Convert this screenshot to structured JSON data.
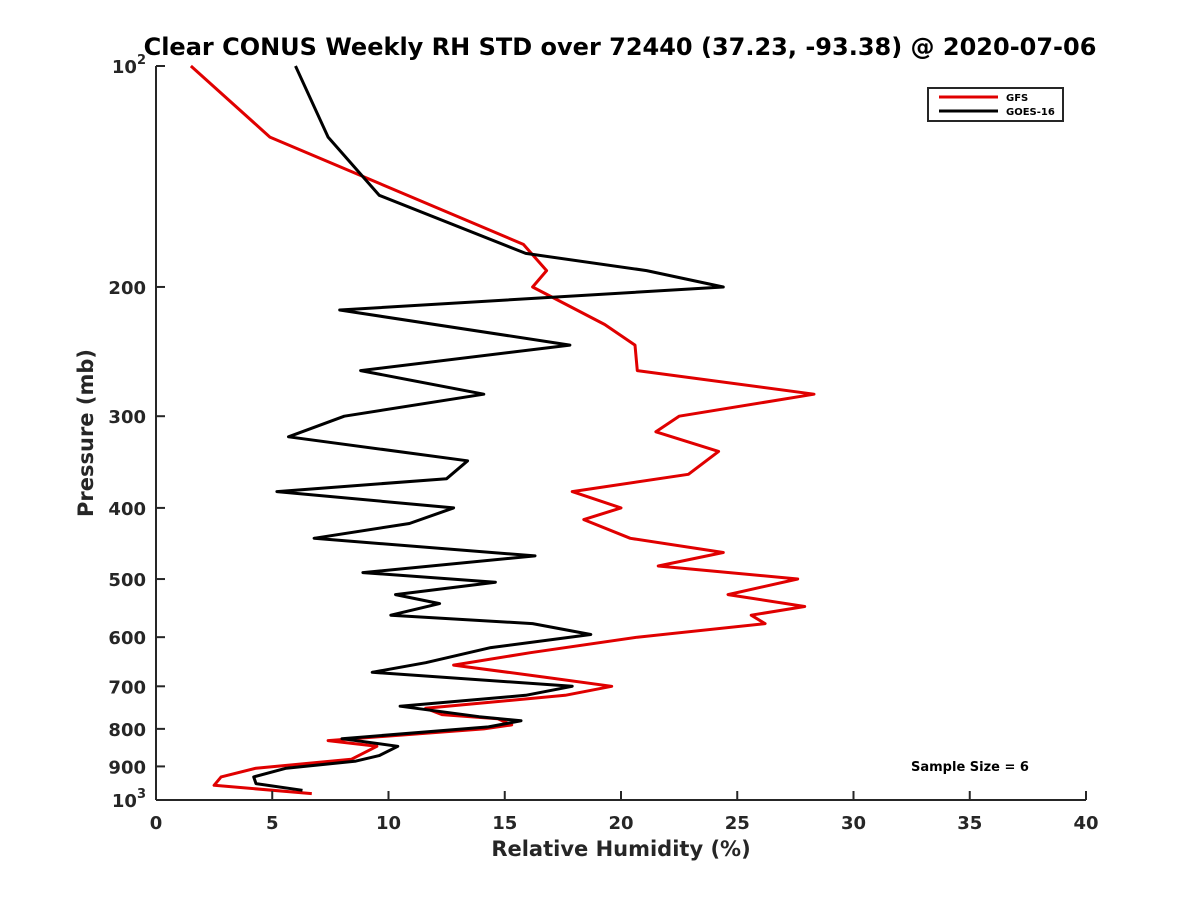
{
  "chart_data": {
    "type": "line",
    "title": "Clear CONUS Weekly RH STD over 72440 (37.23, -93.38) @ 2020-07-06",
    "xlabel": "Relative Humidity (%)",
    "ylabel": "Pressure (mb)",
    "xlim": [
      0,
      40
    ],
    "ylim": [
      100,
      1000
    ],
    "y_scale": "log",
    "y_reversed": true,
    "x_ticks": [
      "0",
      "5",
      "10",
      "15",
      "20",
      "25",
      "30",
      "35",
      "40"
    ],
    "y_ticks": [
      {
        "value": 100,
        "base": "10",
        "exp": "2"
      },
      {
        "value": 200,
        "label": "200"
      },
      {
        "value": 300,
        "label": "300"
      },
      {
        "value": 400,
        "label": "400"
      },
      {
        "value": 500,
        "label": "500"
      },
      {
        "value": 600,
        "label": "600"
      },
      {
        "value": 700,
        "label": "700"
      },
      {
        "value": 800,
        "label": "800"
      },
      {
        "value": 900,
        "label": "900"
      },
      {
        "value": 1000,
        "base": "10",
        "exp": "3"
      }
    ],
    "legend_position": "top-right",
    "annotation": "Sample Size = 6",
    "series": [
      {
        "name": "GFS",
        "color": "#e00000",
        "points": [
          [
            1.5,
            100
          ],
          [
            4.9,
            125
          ],
          [
            15.8,
            175
          ],
          [
            16.8,
            190
          ],
          [
            16.2,
            200
          ],
          [
            19.3,
            225
          ],
          [
            20.6,
            240
          ],
          [
            20.7,
            260
          ],
          [
            28.3,
            280
          ],
          [
            22.5,
            300
          ],
          [
            21.5,
            315
          ],
          [
            24.2,
            335
          ],
          [
            22.9,
            360
          ],
          [
            17.9,
            380
          ],
          [
            20.0,
            400
          ],
          [
            18.4,
            415
          ],
          [
            20.4,
            440
          ],
          [
            24.4,
            460
          ],
          [
            21.6,
            480
          ],
          [
            27.6,
            500
          ],
          [
            24.6,
            525
          ],
          [
            27.9,
            545
          ],
          [
            25.6,
            560
          ],
          [
            26.2,
            575
          ],
          [
            20.7,
            600
          ],
          [
            16.1,
            630
          ],
          [
            12.8,
            655
          ],
          [
            16.7,
            680
          ],
          [
            19.6,
            700
          ],
          [
            17.6,
            720
          ],
          [
            11.6,
            750
          ],
          [
            12.3,
            765
          ],
          [
            14.7,
            775
          ],
          [
            15.3,
            790
          ],
          [
            14.1,
            800
          ],
          [
            7.4,
            830
          ],
          [
            9.5,
            845
          ],
          [
            8.4,
            880
          ],
          [
            4.3,
            905
          ],
          [
            2.8,
            930
          ],
          [
            2.5,
            955
          ],
          [
            6.7,
            980
          ]
        ]
      },
      {
        "name": "GOES-16",
        "color": "#000000",
        "points": [
          [
            6.0,
            100
          ],
          [
            7.4,
            125
          ],
          [
            9.6,
            150
          ],
          [
            15.9,
            180
          ],
          [
            21.1,
            190
          ],
          [
            24.4,
            200
          ],
          [
            7.9,
            215
          ],
          [
            17.8,
            240
          ],
          [
            8.8,
            260
          ],
          [
            14.1,
            280
          ],
          [
            8.1,
            300
          ],
          [
            5.7,
            320
          ],
          [
            13.4,
            345
          ],
          [
            12.5,
            365
          ],
          [
            5.2,
            380
          ],
          [
            12.8,
            400
          ],
          [
            10.9,
            420
          ],
          [
            6.8,
            440
          ],
          [
            16.3,
            465
          ],
          [
            8.9,
            490
          ],
          [
            14.6,
            505
          ],
          [
            10.3,
            525
          ],
          [
            12.2,
            540
          ],
          [
            10.1,
            560
          ],
          [
            16.2,
            575
          ],
          [
            18.7,
            595
          ],
          [
            14.4,
            620
          ],
          [
            11.6,
            650
          ],
          [
            9.3,
            670
          ],
          [
            17.9,
            700
          ],
          [
            15.9,
            720
          ],
          [
            10.5,
            745
          ],
          [
            13.9,
            770
          ],
          [
            15.7,
            780
          ],
          [
            14.3,
            795
          ],
          [
            8.0,
            825
          ],
          [
            10.4,
            845
          ],
          [
            9.6,
            870
          ],
          [
            8.6,
            885
          ],
          [
            5.6,
            905
          ],
          [
            4.2,
            930
          ],
          [
            4.3,
            950
          ],
          [
            6.3,
            970
          ]
        ]
      }
    ]
  }
}
